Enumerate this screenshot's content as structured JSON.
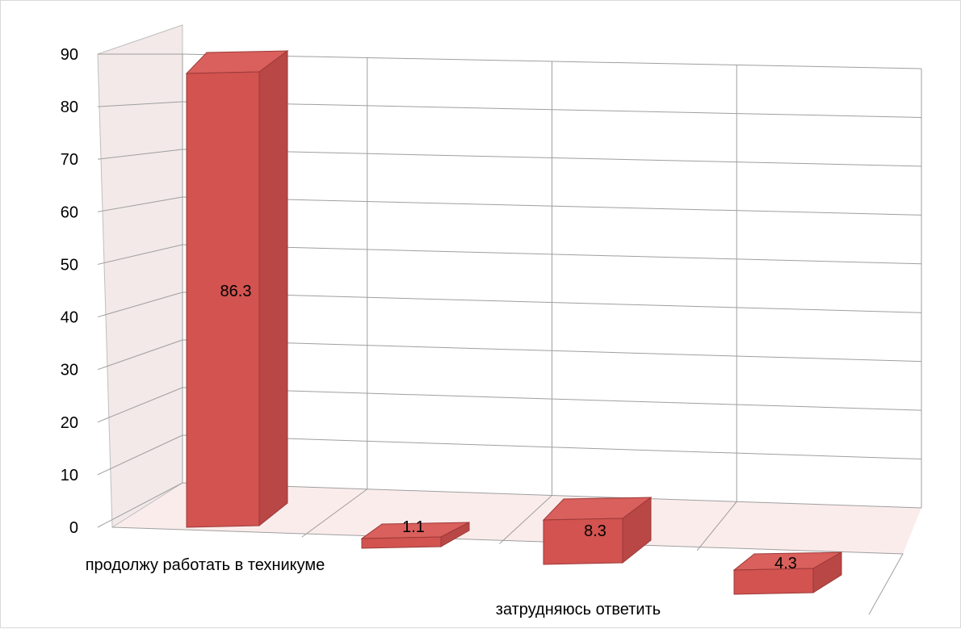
{
  "chart_data": {
    "type": "bar",
    "three_d": true,
    "categories": [
      "продолжу работать в техникуме",
      "",
      "затрудняюсь ответить",
      ""
    ],
    "values": [
      86.3,
      1.1,
      8.3,
      4.3
    ],
    "data_labels": [
      "86.3",
      "1.1",
      "8.3",
      "4.3"
    ],
    "ylim": [
      0,
      90
    ],
    "yticks": [
      0,
      10,
      20,
      30,
      40,
      50,
      60,
      70,
      80,
      90
    ],
    "grid": true,
    "legend": "none",
    "colors": {
      "bar_front": "#d25350",
      "bar_side": "#b84745",
      "bar_top": "#d9605c",
      "bar_edge": "#9c3a38",
      "floor": "#fbecec",
      "side_wall": "#f3e9e9"
    }
  }
}
